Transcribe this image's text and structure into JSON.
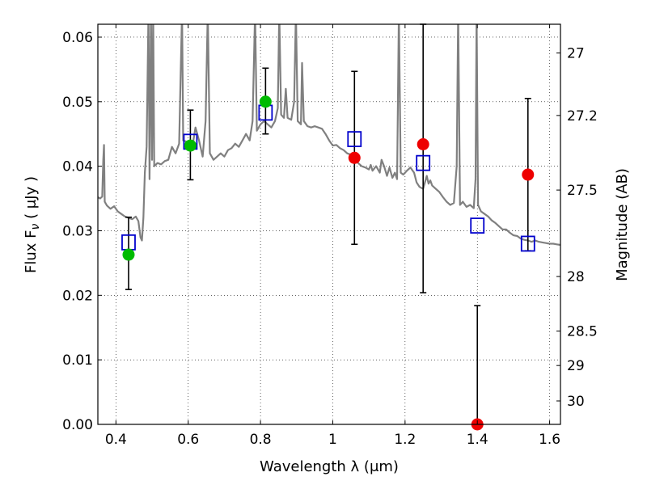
{
  "chart_data": {
    "type": "scatter",
    "xlabel": "Wavelength  λ (μm)",
    "ylabel": "Flux  F",
    "ylabel_sub": "ν",
    "ylabel_unit": " ( μJy )",
    "ylabel_right": "Magnitude (AB)",
    "xlim": [
      0.35,
      1.63
    ],
    "ylim": [
      0.0,
      0.062
    ],
    "grid": true,
    "x_ticks": [
      0.4,
      0.6,
      0.8,
      1.0,
      1.2,
      1.4,
      1.6
    ],
    "x_tick_labels": [
      "0.4",
      "0.6",
      "0.8",
      "1",
      "1.2",
      "1.4",
      "1.6"
    ],
    "y_ticks": [
      0.0,
      0.01,
      0.02,
      0.03,
      0.04,
      0.05,
      0.06
    ],
    "y_tick_labels": [
      "0.00",
      "0.01",
      "0.02",
      "0.03",
      "0.04",
      "0.05",
      "0.06"
    ],
    "mag_ticks": [
      27,
      27.2,
      27.5,
      28,
      28.5,
      29,
      30
    ],
    "mag_tick_labels": [
      "27",
      "27.2",
      "27.5",
      "28",
      "28.5",
      "29",
      "30"
    ],
    "colors": {
      "spectrum": "#808080",
      "green": "#00bb00",
      "red": "#ee0000",
      "model_box": "#0000cc",
      "errorbar": "#000000"
    },
    "series": [
      {
        "points": [
          {
            "x": 0.435,
            "y": 0.0263,
            "yerr_low": 0.0209,
            "yerr_high": 0.0321
          },
          {
            "x": 0.606,
            "y": 0.0432,
            "yerr_low": 0.0379,
            "yerr_high": 0.0487
          },
          {
            "x": 0.814,
            "y": 0.05,
            "yerr_low": 0.045,
            "yerr_high": 0.0552
          }
        ]
      },
      {
        "points": [
          {
            "x": 1.06,
            "y": 0.0413,
            "yerr_low": 0.0279,
            "yerr_high": 0.0547
          },
          {
            "x": 1.25,
            "y": 0.0434,
            "yerr_low": 0.0204,
            "yerr_high": 0.062
          },
          {
            "x": 1.4,
            "y": 0.0,
            "yerr_low": 0.0,
            "yerr_high": 0.0184
          },
          {
            "x": 1.54,
            "y": 0.0387,
            "yerr_low": 0.0269,
            "yerr_high": 0.0505
          }
        ]
      },
      {
        "points": [
          {
            "x": 0.435,
            "y": 0.0282
          },
          {
            "x": 0.606,
            "y": 0.0438
          },
          {
            "x": 0.814,
            "y": 0.0483
          },
          {
            "x": 1.06,
            "y": 0.0442
          },
          {
            "x": 1.25,
            "y": 0.0405
          },
          {
            "x": 1.4,
            "y": 0.0308
          },
          {
            "x": 1.54,
            "y": 0.028
          }
        ]
      }
    ],
    "spectrum": [
      [
        0.35,
        0.0352
      ],
      [
        0.356,
        0.035
      ],
      [
        0.362,
        0.0353
      ],
      [
        0.365,
        0.041
      ],
      [
        0.367,
        0.0433
      ],
      [
        0.369,
        0.0345
      ],
      [
        0.375,
        0.0339
      ],
      [
        0.385,
        0.0334
      ],
      [
        0.395,
        0.0338
      ],
      [
        0.405,
        0.033
      ],
      [
        0.415,
        0.0326
      ],
      [
        0.425,
        0.0322
      ],
      [
        0.435,
        0.032
      ],
      [
        0.445,
        0.0318
      ],
      [
        0.455,
        0.0322
      ],
      [
        0.462,
        0.0315
      ],
      [
        0.468,
        0.029
      ],
      [
        0.472,
        0.0285
      ],
      [
        0.476,
        0.032
      ],
      [
        0.48,
        0.039
      ],
      [
        0.485,
        0.043
      ],
      [
        0.49,
        0.064
      ],
      [
        0.493,
        0.038
      ],
      [
        0.497,
        0.064
      ],
      [
        0.5,
        0.041
      ],
      [
        0.503,
        0.064
      ],
      [
        0.506,
        0.04
      ],
      [
        0.515,
        0.0405
      ],
      [
        0.525,
        0.0403
      ],
      [
        0.535,
        0.0408
      ],
      [
        0.545,
        0.041
      ],
      [
        0.555,
        0.043
      ],
      [
        0.565,
        0.042
      ],
      [
        0.575,
        0.0435
      ],
      [
        0.583,
        0.064
      ],
      [
        0.586,
        0.044
      ],
      [
        0.595,
        0.0438
      ],
      [
        0.61,
        0.0425
      ],
      [
        0.62,
        0.046
      ],
      [
        0.63,
        0.044
      ],
      [
        0.64,
        0.0415
      ],
      [
        0.648,
        0.047
      ],
      [
        0.654,
        0.064
      ],
      [
        0.66,
        0.042
      ],
      [
        0.67,
        0.041
      ],
      [
        0.68,
        0.0415
      ],
      [
        0.69,
        0.042
      ],
      [
        0.7,
        0.0415
      ],
      [
        0.71,
        0.0425
      ],
      [
        0.72,
        0.0428
      ],
      [
        0.73,
        0.0435
      ],
      [
        0.74,
        0.043
      ],
      [
        0.75,
        0.044
      ],
      [
        0.76,
        0.045
      ],
      [
        0.77,
        0.044
      ],
      [
        0.778,
        0.047
      ],
      [
        0.785,
        0.064
      ],
      [
        0.79,
        0.0455
      ],
      [
        0.8,
        0.0465
      ],
      [
        0.81,
        0.047
      ],
      [
        0.82,
        0.0465
      ],
      [
        0.83,
        0.046
      ],
      [
        0.84,
        0.047
      ],
      [
        0.848,
        0.049
      ],
      [
        0.852,
        0.064
      ],
      [
        0.857,
        0.048
      ],
      [
        0.865,
        0.0475
      ],
      [
        0.87,
        0.052
      ],
      [
        0.875,
        0.0475
      ],
      [
        0.885,
        0.0472
      ],
      [
        0.893,
        0.05
      ],
      [
        0.898,
        0.064
      ],
      [
        0.903,
        0.047
      ],
      [
        0.912,
        0.0465
      ],
      [
        0.915,
        0.056
      ],
      [
        0.92,
        0.047
      ],
      [
        0.93,
        0.0462
      ],
      [
        0.94,
        0.046
      ],
      [
        0.95,
        0.0462
      ],
      [
        0.96,
        0.046
      ],
      [
        0.97,
        0.0458
      ],
      [
        0.98,
        0.045
      ],
      [
        0.99,
        0.044
      ],
      [
        1.0,
        0.0432
      ],
      [
        1.01,
        0.0433
      ],
      [
        1.02,
        0.0428
      ],
      [
        1.03,
        0.0425
      ],
      [
        1.04,
        0.042
      ],
      [
        1.05,
        0.0418
      ],
      [
        1.06,
        0.041
      ],
      [
        1.07,
        0.0405
      ],
      [
        1.08,
        0.04
      ],
      [
        1.09,
        0.0398
      ],
      [
        1.1,
        0.0395
      ],
      [
        1.105,
        0.0402
      ],
      [
        1.11,
        0.0393
      ],
      [
        1.12,
        0.04
      ],
      [
        1.13,
        0.039
      ],
      [
        1.135,
        0.041
      ],
      [
        1.142,
        0.04
      ],
      [
        1.15,
        0.0385
      ],
      [
        1.157,
        0.0398
      ],
      [
        1.165,
        0.0382
      ],
      [
        1.172,
        0.039
      ],
      [
        1.178,
        0.038
      ],
      [
        1.183,
        0.064
      ],
      [
        1.188,
        0.039
      ],
      [
        1.195,
        0.0387
      ],
      [
        1.205,
        0.0393
      ],
      [
        1.215,
        0.0398
      ],
      [
        1.225,
        0.039
      ],
      [
        1.232,
        0.0375
      ],
      [
        1.24,
        0.0368
      ],
      [
        1.25,
        0.0365
      ],
      [
        1.26,
        0.0385
      ],
      [
        1.265,
        0.0373
      ],
      [
        1.27,
        0.0378
      ],
      [
        1.275,
        0.037
      ],
      [
        1.285,
        0.0365
      ],
      [
        1.295,
        0.036
      ],
      [
        1.305,
        0.0352
      ],
      [
        1.315,
        0.0345
      ],
      [
        1.325,
        0.034
      ],
      [
        1.335,
        0.0343
      ],
      [
        1.343,
        0.04
      ],
      [
        1.347,
        0.064
      ],
      [
        1.352,
        0.034
      ],
      [
        1.36,
        0.0345
      ],
      [
        1.37,
        0.0337
      ],
      [
        1.38,
        0.034
      ],
      [
        1.39,
        0.0335
      ],
      [
        1.395,
        0.038
      ],
      [
        1.398,
        0.064
      ],
      [
        1.402,
        0.034
      ],
      [
        1.41,
        0.033
      ],
      [
        1.42,
        0.0326
      ],
      [
        1.43,
        0.0322
      ],
      [
        1.44,
        0.0316
      ],
      [
        1.45,
        0.0312
      ],
      [
        1.46,
        0.0307
      ],
      [
        1.47,
        0.0302
      ],
      [
        1.48,
        0.0302
      ],
      [
        1.49,
        0.0297
      ],
      [
        1.5,
        0.0293
      ],
      [
        1.51,
        0.0292
      ],
      [
        1.52,
        0.0288
      ],
      [
        1.53,
        0.0286
      ],
      [
        1.54,
        0.0285
      ],
      [
        1.55,
        0.0283
      ],
      [
        1.56,
        0.0285
      ],
      [
        1.57,
        0.0283
      ],
      [
        1.58,
        0.0282
      ],
      [
        1.59,
        0.0281
      ],
      [
        1.6,
        0.028
      ],
      [
        1.61,
        0.028
      ],
      [
        1.62,
        0.0279
      ],
      [
        1.63,
        0.0278
      ]
    ]
  }
}
